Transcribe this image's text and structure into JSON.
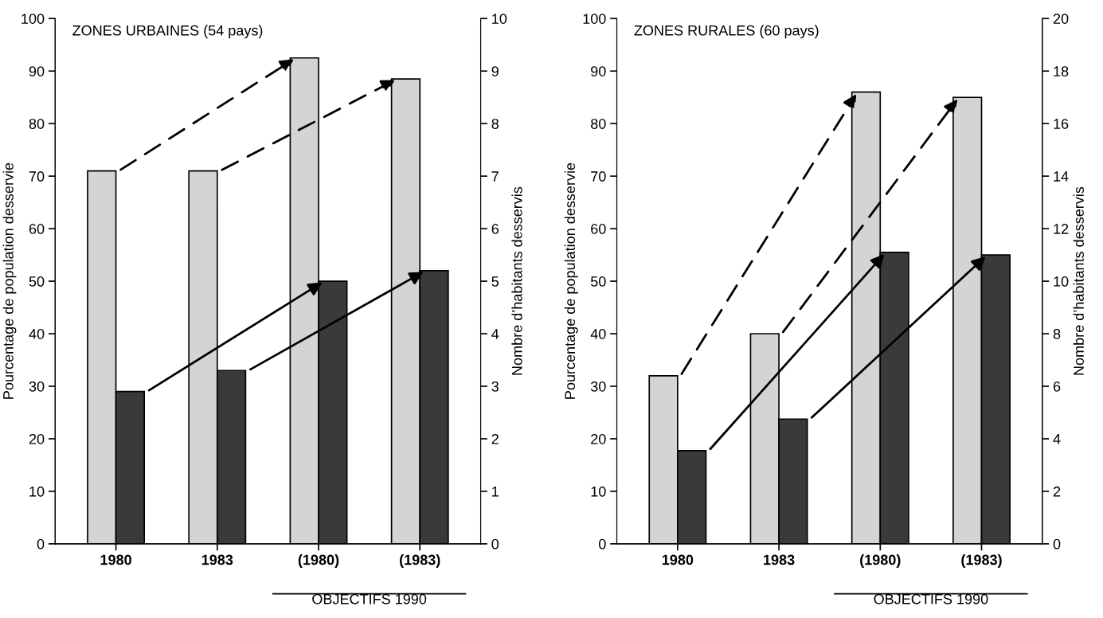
{
  "chart_data": [
    {
      "type": "bar",
      "title": "ZONES URBAINES (54 pays)",
      "categories": [
        "1980",
        "1983",
        "(1980)",
        "(1983)"
      ],
      "ylabel": "Pourcentage de population desservie",
      "y2label": "Nombre d’habitants desservis",
      "ylim": [
        0,
        100
      ],
      "yticks": [
        0,
        10,
        20,
        30,
        40,
        50,
        60,
        70,
        80,
        90,
        100
      ],
      "y2lim": [
        0,
        10
      ],
      "y2ticks": [
        0,
        1,
        2,
        3,
        4,
        5,
        6,
        7,
        8,
        9,
        10
      ],
      "grid": false,
      "annotations": [
        "OBJECTIFS 1990"
      ],
      "series": [
        {
          "color": "#d4d4d4",
          "values": [
            71,
            71,
            92.5,
            88.5
          ],
          "line_style": "dashed"
        },
        {
          "color": "#3a3a3a",
          "values": [
            2.9,
            3.3,
            5.0,
            5.2
          ],
          "axis": "y2",
          "line_style": "solid"
        }
      ]
    },
    {
      "type": "bar",
      "title": "ZONES RURALES (60 pays)",
      "categories": [
        "1980",
        "1983",
        "(1980)",
        "(1983)"
      ],
      "ylabel": "Pourcentage de population desservie",
      "y2label": "Nombre d’habitants desservis",
      "ylim": [
        0,
        100
      ],
      "yticks": [
        0,
        10,
        20,
        30,
        40,
        50,
        60,
        70,
        80,
        90,
        100
      ],
      "y2lim": [
        0,
        20
      ],
      "y2ticks": [
        0,
        2,
        4,
        6,
        8,
        10,
        12,
        14,
        16,
        18,
        20
      ],
      "grid": false,
      "annotations": [
        "OBJECTIFS 1990"
      ],
      "series": [
        {
          "color": "#d4d4d4",
          "values": [
            32,
            40,
            86,
            85
          ],
          "line_style": "dashed"
        },
        {
          "color": "#3a3a3a",
          "values": [
            3.55,
            4.75,
            11.1,
            11.0
          ],
          "axis": "y2",
          "line_style": "solid"
        }
      ]
    }
  ]
}
